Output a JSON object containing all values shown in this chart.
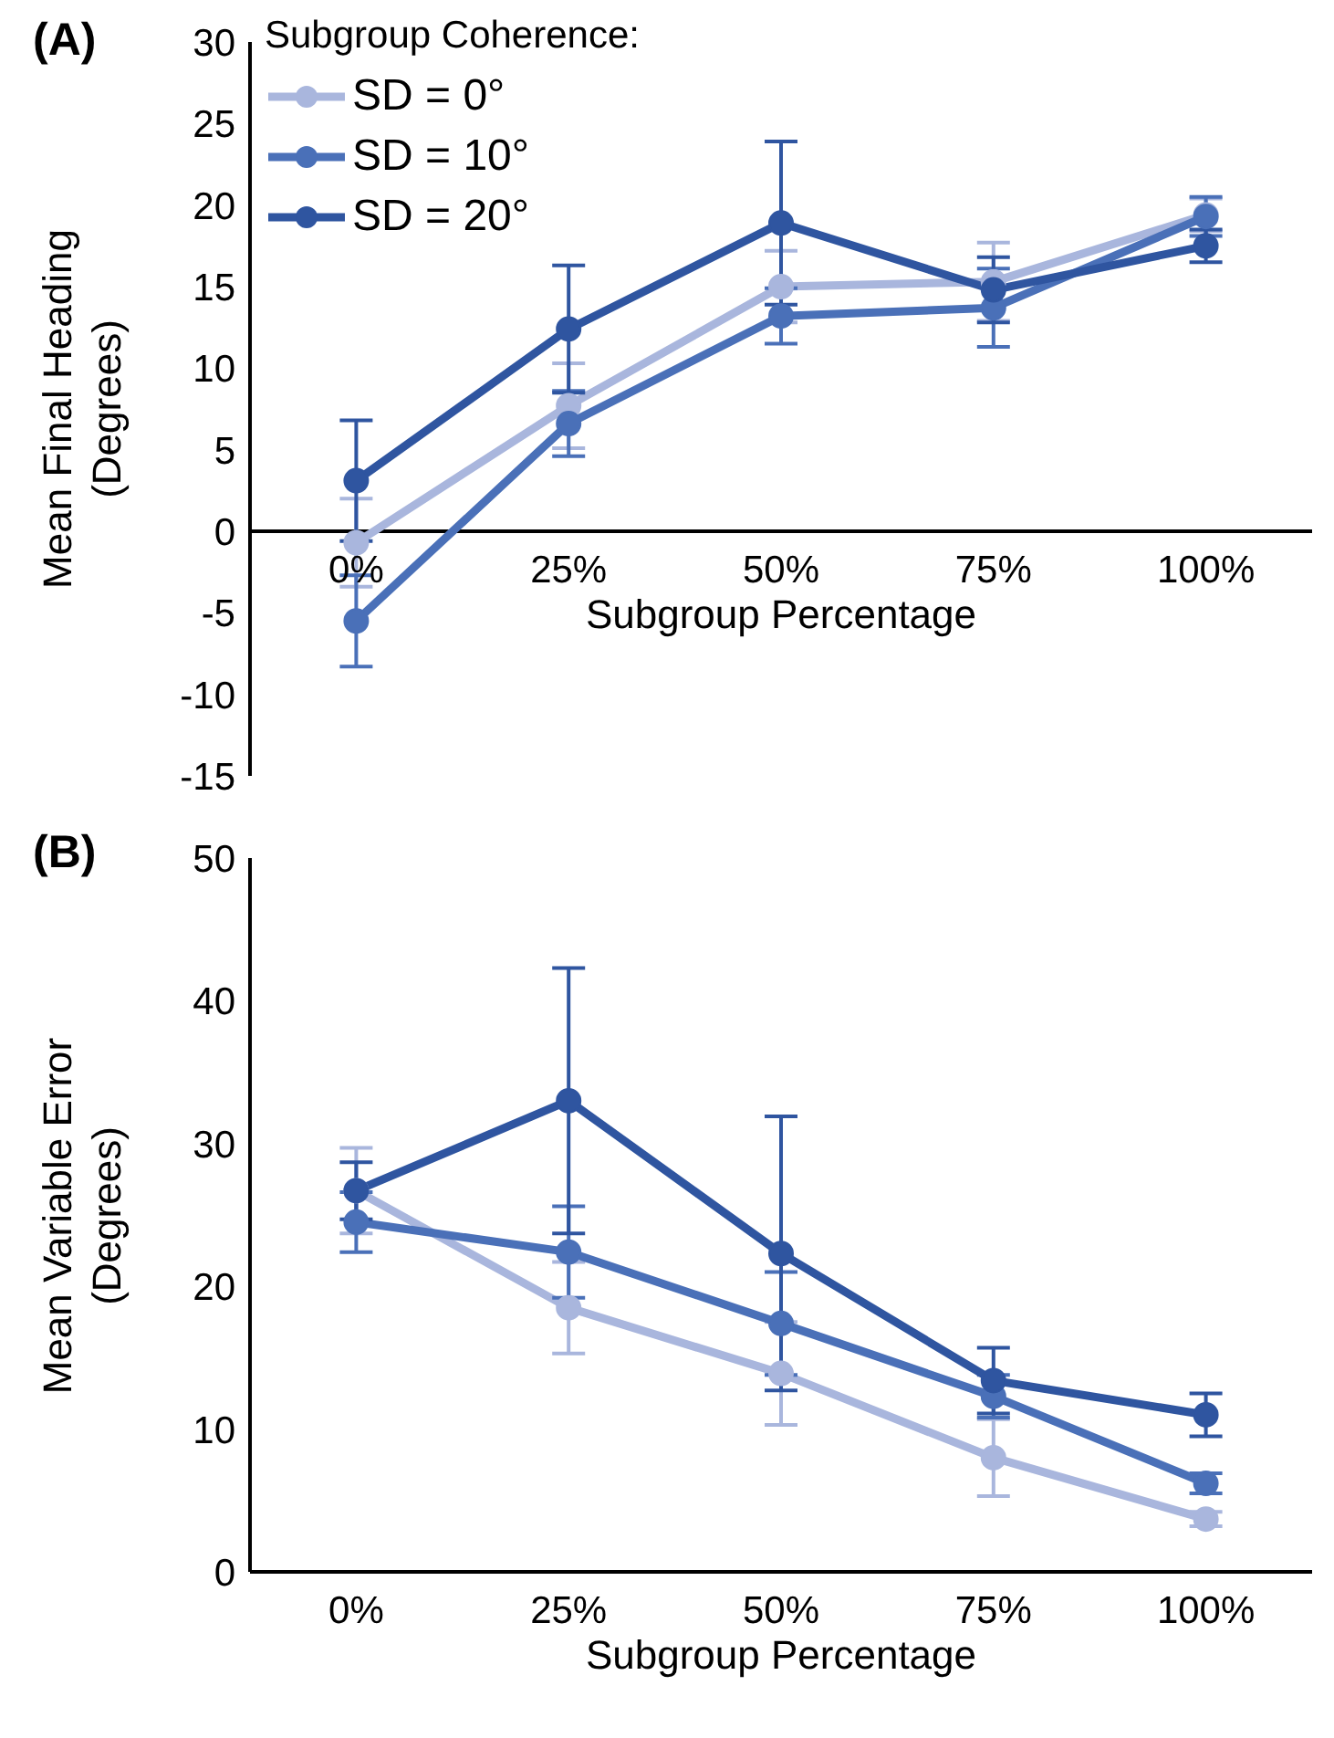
{
  "chart_data": [
    {
      "type": "line",
      "title": "(A)",
      "xlabel": "Subgroup Percentage",
      "ylabel": "Mean Final Heading (Degrees)",
      "legend_title": "Subgroup Coherence:",
      "legend": "top left",
      "marker": "circle",
      "grid": false,
      "categories": [
        "0%",
        "25%",
        "50%",
        "75%",
        "100%"
      ],
      "ylim": [
        -15,
        30
      ],
      "yticks": [
        -15,
        -10,
        -5,
        0,
        5,
        10,
        15,
        20,
        25,
        30
      ],
      "series": [
        {
          "name": "SD = 0°",
          "color": "#a9b6dd",
          "values": [
            -0.7,
            7.7,
            15.0,
            15.3,
            19.4
          ],
          "errors": [
            2.7,
            2.6,
            2.2,
            2.4,
            1.0
          ]
        },
        {
          "name": "SD = 10°",
          "color": "#4a70b8",
          "values": [
            -5.5,
            6.6,
            13.2,
            13.7,
            19.3
          ],
          "errors": [
            2.8,
            2.0,
            1.7,
            2.4,
            1.2
          ]
        },
        {
          "name": "SD = 20°",
          "color": "#2f55a0",
          "values": [
            3.1,
            12.4,
            18.9,
            14.8,
            17.5
          ],
          "errors": [
            3.7,
            3.9,
            5.0,
            2.0,
            1.0
          ]
        }
      ]
    },
    {
      "type": "line",
      "title": "(B)",
      "xlabel": "Subgroup Percentage",
      "ylabel": "Mean Variable Error (Degrees)",
      "marker": "circle",
      "grid": false,
      "legend": false,
      "categories": [
        "0%",
        "25%",
        "50%",
        "75%",
        "100%"
      ],
      "ylim": [
        0,
        50
      ],
      "yticks": [
        0,
        10,
        20,
        30,
        40,
        50
      ],
      "series": [
        {
          "color": "#a9b6dd",
          "values": [
            26.7,
            18.5,
            13.9,
            8.0,
            3.7
          ],
          "errors": [
            3.0,
            3.2,
            3.6,
            2.7,
            0.5
          ]
        },
        {
          "color": "#4a70b8",
          "values": [
            24.5,
            22.4,
            17.4,
            12.3,
            6.2
          ],
          "errors": [
            2.1,
            3.2,
            3.6,
            1.5,
            0.7
          ]
        },
        {
          "color": "#2f55a0",
          "values": [
            26.7,
            33.0,
            22.3,
            13.4,
            11.0
          ],
          "errors": [
            2.0,
            9.3,
            9.6,
            2.3,
            1.5
          ]
        }
      ]
    }
  ]
}
